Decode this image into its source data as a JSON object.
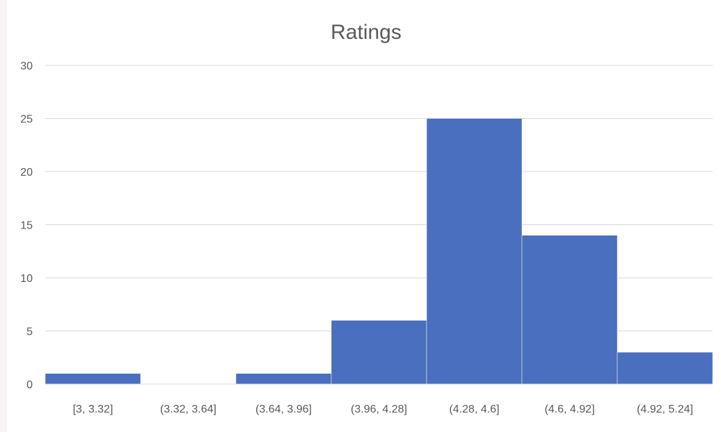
{
  "chart_data": {
    "type": "bar",
    "title": "Ratings",
    "xlabel": "",
    "ylabel": "",
    "categories": [
      "[3, 3.32]",
      "(3.32, 3.64]",
      "(3.64, 3.96]",
      "(3.96, 4.28]",
      "(4.28, 4.6]",
      "(4.6, 4.92]",
      "(4.92, 5.24]"
    ],
    "values": [
      1,
      0,
      1,
      6,
      25,
      14,
      3
    ],
    "ylim": [
      0,
      30
    ],
    "yticks": [
      0,
      5,
      10,
      15,
      20,
      25,
      30
    ],
    "grid": true,
    "legend": "none",
    "bar_color": "#4a6fbe",
    "histogram": true
  }
}
